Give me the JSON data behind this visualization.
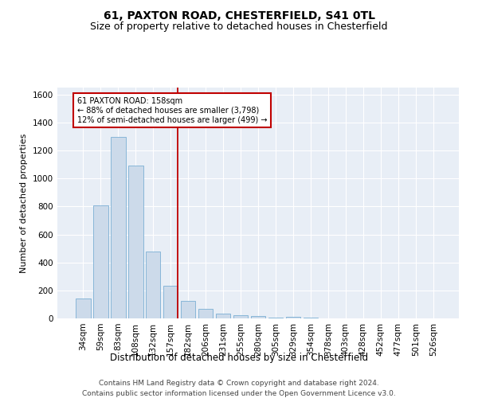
{
  "title1": "61, PAXTON ROAD, CHESTERFIELD, S41 0TL",
  "title2": "Size of property relative to detached houses in Chesterfield",
  "xlabel": "Distribution of detached houses by size in Chesterfield",
  "ylabel": "Number of detached properties",
  "footnote1": "Contains HM Land Registry data © Crown copyright and database right 2024.",
  "footnote2": "Contains public sector information licensed under the Open Government Licence v3.0.",
  "bar_labels": [
    "34sqm",
    "59sqm",
    "83sqm",
    "108sqm",
    "132sqm",
    "157sqm",
    "182sqm",
    "206sqm",
    "231sqm",
    "255sqm",
    "280sqm",
    "305sqm",
    "329sqm",
    "354sqm",
    "378sqm",
    "403sqm",
    "428sqm",
    "452sqm",
    "477sqm",
    "501sqm",
    "526sqm"
  ],
  "bar_values": [
    140,
    810,
    1300,
    1090,
    480,
    235,
    125,
    70,
    35,
    25,
    15,
    8,
    13,
    3,
    2,
    2,
    2,
    2,
    2,
    2,
    2
  ],
  "bar_color": "#ccdaea",
  "bar_edge_color": "#7bafd4",
  "vline_x": 5.42,
  "vline_color": "#c00000",
  "annotation_line1": "61 PAXTON ROAD: 158sqm",
  "annotation_line2": "← 88% of detached houses are smaller (3,798)",
  "annotation_line3": "12% of semi-detached houses are larger (499) →",
  "annotation_box_color": "white",
  "annotation_box_edge": "#c00000",
  "ylim": [
    0,
    1650
  ],
  "yticks": [
    0,
    200,
    400,
    600,
    800,
    1000,
    1200,
    1400,
    1600
  ],
  "background_color": "#e8eef6",
  "title_fontsize": 10,
  "subtitle_fontsize": 9,
  "footnote_fontsize": 6.5,
  "ylabel_fontsize": 8,
  "xlabel_fontsize": 8.5,
  "tick_fontsize": 7.5,
  "ytick_fontsize": 7.5
}
